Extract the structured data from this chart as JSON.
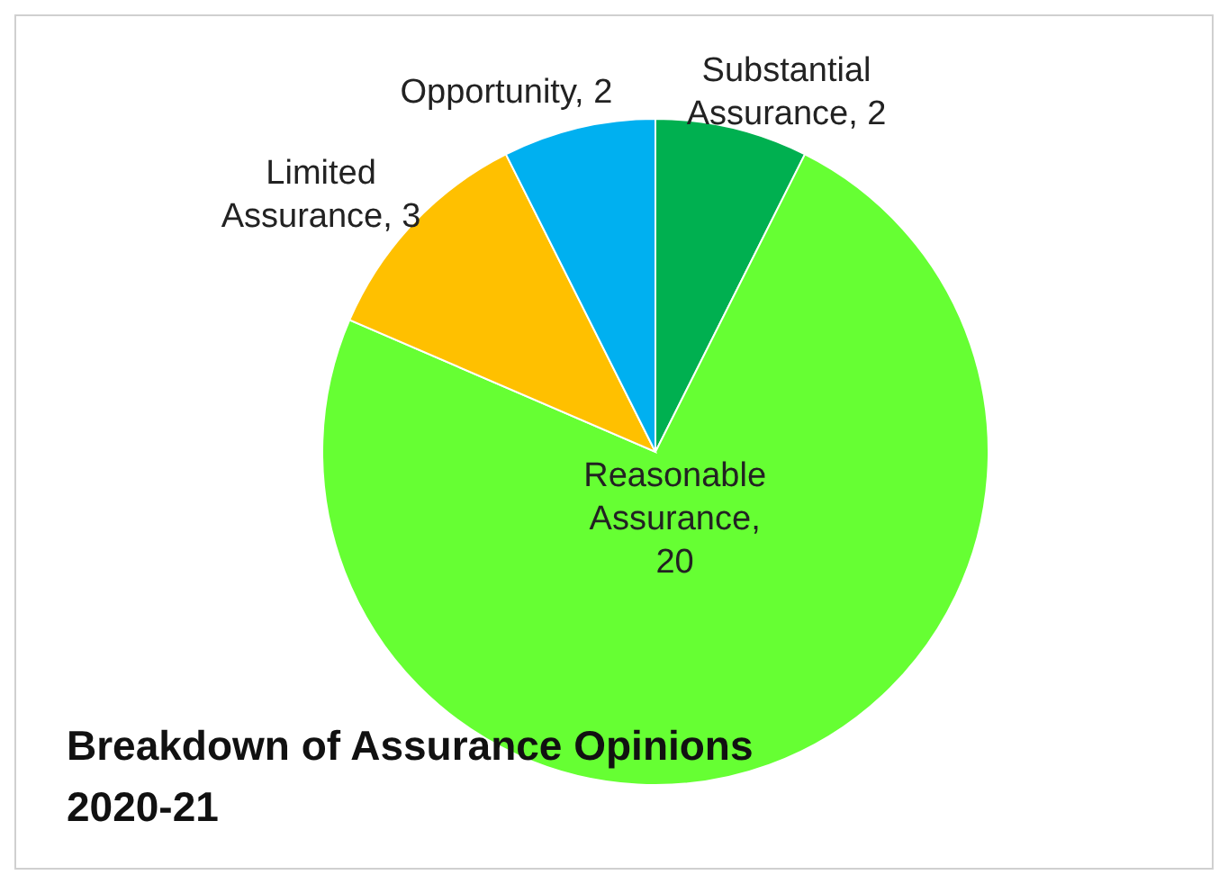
{
  "chart_data": {
    "type": "pie",
    "title": "Breakdown of Assurance Opinions 2020-21",
    "categories": [
      "Substantial Assurance",
      "Reasonable Assurance",
      "Limited Assurance",
      "Opportunity"
    ],
    "values": [
      2,
      20,
      3,
      2
    ],
    "value_labels": [
      ", 2",
      ", 20",
      ", 3",
      ", 2"
    ],
    "colors": [
      "#00b050",
      "#66ff33",
      "#ffc000",
      "#00b0f0"
    ],
    "legend": false
  }
}
